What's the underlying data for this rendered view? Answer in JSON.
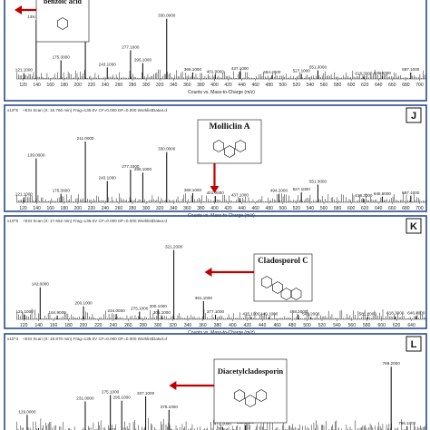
{
  "chart_data": [
    {
      "type": "bar",
      "panel": "",
      "scan_header": "",
      "y_scale_label": "",
      "compound": "benzoic acid",
      "arrow_mz": 140.0,
      "x_tick_labels": [
        "120",
        "140",
        "160",
        "180",
        "200",
        "220",
        "240",
        "260",
        "280",
        "300",
        "320",
        "340",
        "360",
        "380",
        "400",
        "420",
        "440",
        "460",
        "480",
        "500",
        "520",
        "540",
        "560",
        "580",
        "600",
        "620",
        "640",
        "660",
        "680",
        "700"
      ],
      "xlabel": "Counts vs. Mass-to-Charge (m/z)",
      "xlim": [
        110,
        710
      ],
      "peaks": [
        {
          "mz": 121.1,
          "intensity": 0.08,
          "label": "121.1000"
        },
        {
          "mz": 139.0,
          "intensity": 0.82,
          "label": "139.0000"
        },
        {
          "mz": 175.3,
          "intensity": 0.26,
          "label": "175.3000"
        },
        {
          "mz": 211.0,
          "intensity": 0.95,
          "label": ""
        },
        {
          "mz": 243.1,
          "intensity": 0.16,
          "label": "243.1000"
        },
        {
          "mz": 277.1,
          "intensity": 0.4,
          "label": "277.1000"
        },
        {
          "mz": 295.1,
          "intensity": 0.22,
          "label": "295.1000"
        },
        {
          "mz": 330.0,
          "intensity": 0.84,
          "label": "330.0000"
        },
        {
          "mz": 368.1,
          "intensity": 0.09,
          "label": "368.1000"
        },
        {
          "mz": 401.0,
          "intensity": 0.06,
          "label": "401.0000"
        },
        {
          "mz": 437.1,
          "intensity": 0.1,
          "label": "437.1000"
        },
        {
          "mz": 484.2,
          "intensity": 0.05,
          "label": "484.2000"
        },
        {
          "mz": 527.1,
          "intensity": 0.07,
          "label": "527.1000"
        },
        {
          "mz": 551.3,
          "intensity": 0.12,
          "label": "551.3000"
        },
        {
          "mz": 618.3,
          "intensity": 0.03,
          "label": "618.3000"
        },
        {
          "mz": 645.5,
          "intensity": 0.04,
          "label": "645.5000"
        },
        {
          "mz": 687.1,
          "intensity": 0.09,
          "label": "687.1000"
        }
      ]
    },
    {
      "type": "bar",
      "panel": "J",
      "scan_header": "+ESI Scan (rt: 15.760 min) Frag=135.0V CF=0.000 DF=0.000 WorklistData4.d",
      "y_scale_label": "x10^5",
      "compound": "Molliclin A",
      "arrow_mz": 400.0,
      "x_tick_labels": [
        "120",
        "140",
        "160",
        "180",
        "200",
        "220",
        "240",
        "260",
        "280",
        "300",
        "320",
        "340",
        "360",
        "380",
        "400",
        "420",
        "440",
        "460",
        "480",
        "500",
        "520",
        "540",
        "560",
        "580",
        "600",
        "620",
        "640",
        "660",
        "680",
        "700"
      ],
      "xlabel": "Counts vs. Mass-to-Charge (m/z)",
      "xlim": [
        110,
        710
      ],
      "peaks": [
        {
          "mz": 121.1,
          "intensity": 0.07,
          "label": "121.1000"
        },
        {
          "mz": 139.0,
          "intensity": 0.62,
          "label": "139.0000"
        },
        {
          "mz": 175.3,
          "intensity": 0.12,
          "label": "175.3000"
        },
        {
          "mz": 211.0,
          "intensity": 0.86,
          "label": "211.0000"
        },
        {
          "mz": 243.1,
          "intensity": 0.3,
          "label": "243.1000"
        },
        {
          "mz": 277.1,
          "intensity": 0.46,
          "label": "277.1000"
        },
        {
          "mz": 295.1,
          "intensity": 0.42,
          "label": "295.1000"
        },
        {
          "mz": 330.0,
          "intensity": 0.71,
          "label": "330.0000"
        },
        {
          "mz": 368.1,
          "intensity": 0.13,
          "label": "368.1000"
        },
        {
          "mz": 401.0,
          "intensity": 0.09,
          "label": "401.0000"
        },
        {
          "mz": 437.1,
          "intensity": 0.06,
          "label": "437.1000"
        },
        {
          "mz": 494.2,
          "intensity": 0.12,
          "label": "494.2000"
        },
        {
          "mz": 527.1,
          "intensity": 0.14,
          "label": "527.1000"
        },
        {
          "mz": 551.3,
          "intensity": 0.25,
          "label": "551.3000"
        },
        {
          "mz": 618.3,
          "intensity": 0.05,
          "label": "618.3000"
        },
        {
          "mz": 645.5,
          "intensity": 0.08,
          "label": "645.5000"
        },
        {
          "mz": 687.1,
          "intensity": 0.09,
          "label": "687.1000"
        }
      ]
    },
    {
      "type": "bar",
      "panel": "K",
      "scan_header": "+ESI Scan (rt: 17.552 min) Frag=135.0V CF=0.000 DF=0.000 WorklistData4.d",
      "y_scale_label": "x10^5",
      "compound": "Cladosporol C",
      "arrow_mz": 360.0,
      "x_tick_labels": [
        "120",
        "140",
        "160",
        "180",
        "200",
        "220",
        "240",
        "260",
        "280",
        "300",
        "320",
        "340",
        "360",
        "380",
        "400",
        "420",
        "440",
        "460",
        "480",
        "500",
        "520",
        "540",
        "560",
        "580",
        "600",
        "620",
        "640"
      ],
      "xlabel": "Counts vs. Mass-to-Charge (m/z)",
      "xlim": [
        110,
        660
      ],
      "peaks": [
        {
          "mz": 121.1,
          "intensity": 0.06,
          "label": "121.1000"
        },
        {
          "mz": 142.0,
          "intensity": 0.42,
          "label": "142.0000"
        },
        {
          "mz": 164.9,
          "intensity": 0.05,
          "label": "164.9000"
        },
        {
          "mz": 200.1,
          "intensity": 0.17,
          "label": "200.1000"
        },
        {
          "mz": 244.0,
          "intensity": 0.07,
          "label": "244.0000"
        },
        {
          "mz": 275.1,
          "intensity": 0.1,
          "label": "275.1000"
        },
        {
          "mz": 300.1,
          "intensity": 0.13,
          "label": "300.1000"
        },
        {
          "mz": 305.1,
          "intensity": 0.05,
          "label": "305.1000"
        },
        {
          "mz": 321.2,
          "intensity": 0.91,
          "label": "321.2000"
        },
        {
          "mz": 361.1,
          "intensity": 0.24,
          "label": "361.1000"
        },
        {
          "mz": 377.1,
          "intensity": 0.06,
          "label": "377.1000"
        },
        {
          "mz": 425.1,
          "intensity": 0.03,
          "label": "425.1000"
        },
        {
          "mz": 449.1,
          "intensity": 0.03,
          "label": "449.1000"
        },
        {
          "mz": 488.2,
          "intensity": 0.06,
          "label": "488.2000"
        },
        {
          "mz": 505.2,
          "intensity": 0.03,
          "label": "505.2000"
        },
        {
          "mz": 581.2,
          "intensity": 0.03,
          "label": "581.2000"
        },
        {
          "mz": 618.3,
          "intensity": 0.04,
          "label": "618.3000"
        },
        {
          "mz": 646.4,
          "intensity": 0.04,
          "label": "646.4000"
        }
      ]
    },
    {
      "type": "bar",
      "panel": "L",
      "scan_header": "+ESI Scan (rt: 18.870 min) Frag=135.0V CF=0.000 DF=0.000 WorklistData4.d",
      "y_scale_label": "x10^4",
      "compound": "Diacetylcladosporin",
      "arrow_mz": 375.0,
      "x_tick_labels": [],
      "xlabel": "",
      "xlim": [
        110,
        830
      ],
      "peaks": [
        {
          "mz": 129.0,
          "intensity": 0.24,
          "label": "129.0000"
        },
        {
          "mz": 149.0,
          "intensity": 0.05,
          "label": ""
        },
        {
          "mz": 231.0,
          "intensity": 0.43,
          "label": "231.0000"
        },
        {
          "mz": 275.1,
          "intensity": 0.52,
          "label": "275.1000"
        },
        {
          "mz": 295.1,
          "intensity": 0.44,
          "label": "295.1000"
        },
        {
          "mz": 337.1,
          "intensity": 0.5,
          "label": "337.1000"
        },
        {
          "mz": 378.1,
          "intensity": 0.31,
          "label": "378.1000"
        },
        {
          "mz": 472.1,
          "intensity": 0.07,
          "label": "472.1000"
        },
        {
          "mz": 512.1,
          "intensity": 0.09,
          "label": "512.1000"
        },
        {
          "mz": 768.2,
          "intensity": 0.92,
          "label": "768.2000"
        },
        {
          "mz": 796.1,
          "intensity": 0.08,
          "label": "796.1000"
        }
      ]
    }
  ],
  "colors": {
    "frame": "#2b4a8c",
    "arrow": "#c00000",
    "spectrum": "#1a1a1a",
    "background": "#ffffff"
  }
}
